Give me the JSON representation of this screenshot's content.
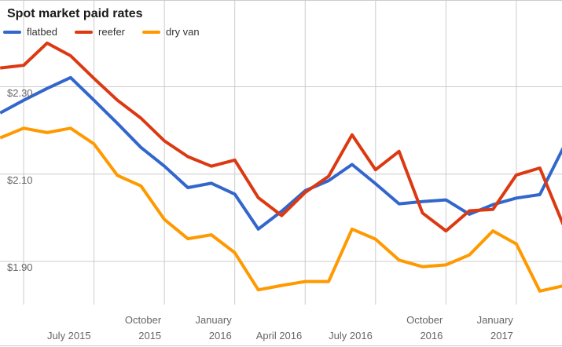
{
  "title": "Spot market paid rates",
  "palette": {
    "background": "#ffffff",
    "gridline": "#cccccc",
    "axis_text": "#666666",
    "title_text": "#1a1a1a",
    "legend_text": "#333333"
  },
  "chart_data": {
    "type": "line",
    "title": "Spot market paid rates",
    "legend_position": "top-left",
    "grid": true,
    "ylim": [
      1.8,
      2.5
    ],
    "y_ticks": [
      {
        "label": "$2.30",
        "value": 2.3
      },
      {
        "label": "$2.10",
        "value": 2.1
      },
      {
        "label": "$1.90",
        "value": 1.9
      }
    ],
    "x_categories": [
      "Mar 2015",
      "Apr 2015",
      "May 2015",
      "Jun 2015",
      "Jul 2015",
      "Aug 2015",
      "Sep 2015",
      "Oct 2015",
      "Nov 2015",
      "Dec 2015",
      "Jan 2016",
      "Feb 2016",
      "Mar 2016",
      "Apr 2016",
      "May 2016",
      "Jun 2016",
      "Jul 2016",
      "Aug 2016",
      "Sep 2016",
      "Oct 2016",
      "Nov 2016",
      "Dec 2016",
      "Jan 2017",
      "Feb 2017",
      "Mar 2017"
    ],
    "x_ticks": [
      {
        "month_index": 1,
        "lines": []
      },
      {
        "month_index": 4,
        "lines": [
          "July 2015"
        ]
      },
      {
        "month_index": 7,
        "lines": [
          "October",
          "2015"
        ]
      },
      {
        "month_index": 10,
        "lines": [
          "January",
          "2016"
        ]
      },
      {
        "month_index": 13,
        "lines": [
          "April 2016"
        ]
      },
      {
        "month_index": 16,
        "lines": [
          "July 2016"
        ]
      },
      {
        "month_index": 19,
        "lines": [
          "October",
          "2016"
        ]
      },
      {
        "month_index": 22,
        "lines": [
          "January",
          "2017"
        ]
      }
    ],
    "series": [
      {
        "name": "flatbed",
        "color": "#3366cc",
        "values": [
          2.24,
          2.269,
          2.296,
          2.321,
          2.269,
          2.216,
          2.161,
          2.118,
          2.069,
          2.079,
          2.054,
          1.974,
          2.015,
          2.062,
          2.085,
          2.122,
          2.078,
          2.032,
          2.037,
          2.041,
          2.008,
          2.03,
          2.045,
          2.053,
          2.16
        ]
      },
      {
        "name": "reefer",
        "color": "#dc3912",
        "values": [
          2.343,
          2.349,
          2.4,
          2.371,
          2.319,
          2.269,
          2.228,
          2.176,
          2.14,
          2.118,
          2.132,
          2.046,
          2.005,
          2.058,
          2.095,
          2.19,
          2.11,
          2.152,
          2.011,
          1.97,
          2.016,
          2.019,
          2.098,
          2.114,
          1.984
        ]
      },
      {
        "name": "dry van",
        "color": "#ff9900",
        "values": [
          2.183,
          2.205,
          2.195,
          2.205,
          2.169,
          2.097,
          2.073,
          1.996,
          1.952,
          1.961,
          1.92,
          1.835,
          1.845,
          1.854,
          1.854,
          1.974,
          1.951,
          1.903,
          1.888,
          1.892,
          1.915,
          1.97,
          1.94,
          1.832,
          1.844
        ]
      }
    ]
  }
}
